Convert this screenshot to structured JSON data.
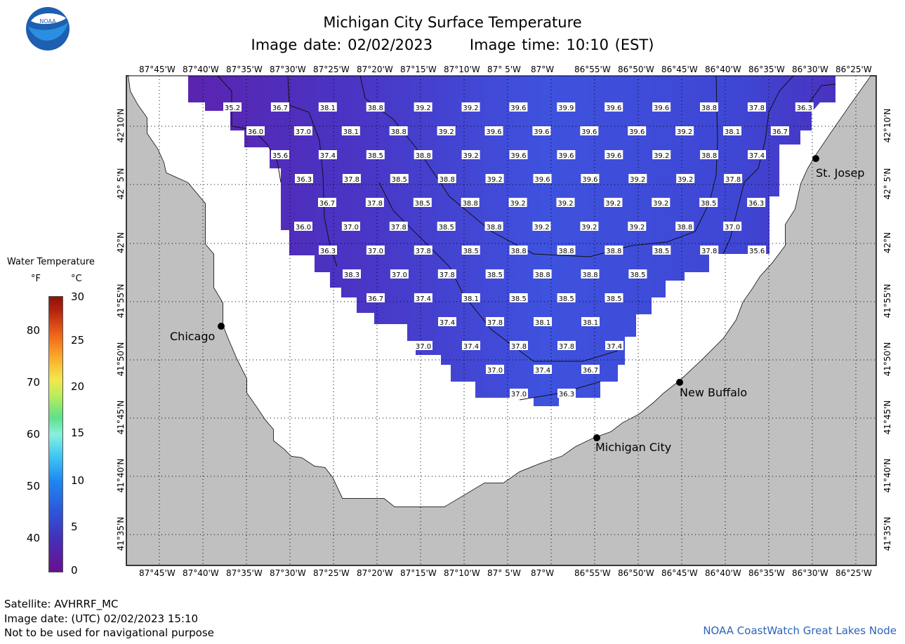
{
  "title": "Michigan City Surface Temperature",
  "image_date": "Image date: 02/02/2023",
  "image_time": "Image time: 10:10 (EST)",
  "logo_text": "NOAA",
  "lon_labels": [
    "87°45'W",
    "87°40'W",
    "87°35'W",
    "87°30'W",
    "87°25'W",
    "87°20'W",
    "87°15'W",
    "87°10'W",
    "87° 5'W",
    "87°W",
    "86°55'W",
    "86°50'W",
    "86°45'W",
    "86°40'W",
    "86°35'W",
    "86°30'W",
    "86°25'W"
  ],
  "lat_labels": [
    "42°10'N",
    "42° 5'N",
    "42°N",
    "41°55'N",
    "41°50'N",
    "41°45'N",
    "41°40'N",
    "41°35'N"
  ],
  "legend": {
    "title": "Water Temperature",
    "unit_f": "°F",
    "unit_c": "°C",
    "f_ticks": [
      "80",
      "70",
      "60",
      "50",
      "40"
    ],
    "c_ticks": [
      "30",
      "25",
      "20",
      "15",
      "10",
      "5",
      "0"
    ]
  },
  "cities": [
    {
      "name": "Chicago"
    },
    {
      "name": "St. Josep"
    },
    {
      "name": "New Buffalo"
    },
    {
      "name": "Michigan City"
    }
  ],
  "temperature_rows": [
    [
      "35.2",
      "36.7",
      "38.1",
      "38.8",
      "39.2",
      "39.2",
      "39.6",
      "39.9",
      "39.6",
      "39.6",
      "38.8",
      "37.8",
      "36.3"
    ],
    [
      "36.0",
      "37.0",
      "38.1",
      "38.8",
      "39.2",
      "39.6",
      "39.6",
      "39.6",
      "39.6",
      "39.2",
      "38.1",
      "36.7"
    ],
    [
      "35.6",
      "37.4",
      "38.5",
      "38.8",
      "39.2",
      "39.6",
      "39.6",
      "39.6",
      "39.2",
      "38.8",
      "37.4"
    ],
    [
      "36.3",
      "37.8",
      "38.5",
      "38.8",
      "39.2",
      "39.6",
      "39.6",
      "39.2",
      "39.2",
      "37.8"
    ],
    [
      "36.7",
      "37.8",
      "38.5",
      "38.8",
      "39.2",
      "39.2",
      "39.2",
      "39.2",
      "38.5",
      "36.3"
    ],
    [
      "36.0",
      "37.0",
      "37.8",
      "38.5",
      "38.8",
      "39.2",
      "39.2",
      "39.2",
      "38.8",
      "37.0"
    ],
    [
      "36.3",
      "37.0",
      "37.8",
      "38.5",
      "38.8",
      "38.8",
      "38.8",
      "38.5",
      "37.8",
      "35.6"
    ],
    [
      "38.3",
      "37.0",
      "37.8",
      "38.5",
      "38.8",
      "38.8",
      "38.5"
    ],
    [
      "36.7",
      "37.4",
      "38.1",
      "38.5",
      "38.5",
      "38.5"
    ],
    [
      "37.4",
      "37.8",
      "38.1",
      "38.1"
    ],
    [
      "37.0",
      "37.4",
      "37.8",
      "37.8",
      "37.4"
    ],
    [
      "37.0",
      "37.4",
      "36.7"
    ],
    [
      "37.0",
      "36.3"
    ]
  ],
  "footer": {
    "satellite": "Satellite: AVHRRF_MC",
    "utc_date": "Image date: (UTC) 02/02/2023   15:10",
    "disclaimer": "Not to be used for navigational purpose"
  },
  "credit": "NOAA CoastWatch Great Lakes Node",
  "colors": {
    "land": "#c0c0c0",
    "water_base": "#3d3fd0",
    "water_warm": "#3e52de",
    "water_cold": "#5a24b0",
    "credit": "#2d63b8"
  }
}
